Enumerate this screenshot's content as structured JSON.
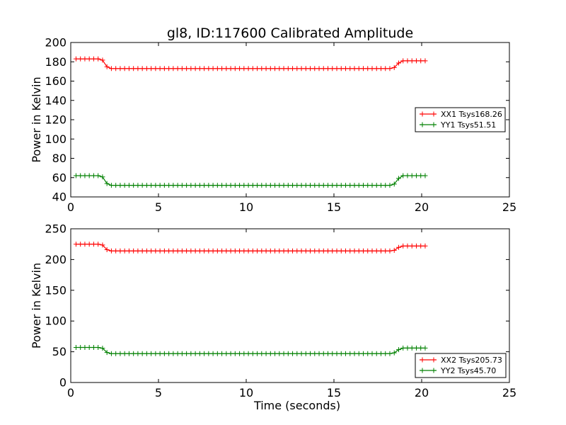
{
  "chart_data": [
    {
      "type": "line",
      "title": "gl8, ID:117600 Calibrated Amplitude",
      "xlabel": "",
      "ylabel": "Power in Kelvin",
      "xlim": [
        0,
        25
      ],
      "ylim": [
        40,
        200
      ],
      "xticks": [
        0,
        5,
        10,
        15,
        20,
        25
      ],
      "yticks": [
        40,
        60,
        80,
        100,
        120,
        140,
        160,
        180,
        200
      ],
      "grid": false,
      "legend": "center-right",
      "series": [
        {
          "name": "XX1 Tsys168.26",
          "color": "#ff0000",
          "marker": "plus",
          "level_start": 183,
          "level_mid": 173,
          "level_end": 181,
          "x_start": 0.3,
          "x_end": 20.2,
          "drop_x": [
            1.7,
            2.2
          ],
          "rise_x": [
            18.3,
            18.9
          ]
        },
        {
          "name": "YY1 Tsys51.51",
          "color": "#008000",
          "marker": "plus",
          "level_start": 62,
          "level_mid": 52,
          "level_end": 62,
          "x_start": 0.3,
          "x_end": 20.2,
          "drop_x": [
            1.7,
            2.2
          ],
          "rise_x": [
            18.3,
            18.9
          ]
        }
      ]
    },
    {
      "type": "line",
      "title": "",
      "xlabel": "Time (seconds)",
      "ylabel": "Power in Kelvin",
      "xlim": [
        0,
        25
      ],
      "ylim": [
        0,
        250
      ],
      "xticks": [
        0,
        5,
        10,
        15,
        20,
        25
      ],
      "yticks": [
        0,
        50,
        100,
        150,
        200,
        250
      ],
      "grid": false,
      "legend": "lower-right",
      "series": [
        {
          "name": "XX2 Tsys205.73",
          "color": "#ff0000",
          "marker": "plus",
          "level_start": 225,
          "level_mid": 214,
          "level_end": 222,
          "x_start": 0.3,
          "x_end": 20.2,
          "drop_x": [
            1.7,
            2.2
          ],
          "rise_x": [
            18.3,
            18.9
          ]
        },
        {
          "name": "YY2 Tsys45.70",
          "color": "#008000",
          "marker": "plus",
          "level_start": 57,
          "level_mid": 47,
          "level_end": 56,
          "x_start": 0.3,
          "x_end": 20.2,
          "drop_x": [
            1.7,
            2.2
          ],
          "rise_x": [
            18.3,
            18.9
          ]
        }
      ]
    }
  ]
}
